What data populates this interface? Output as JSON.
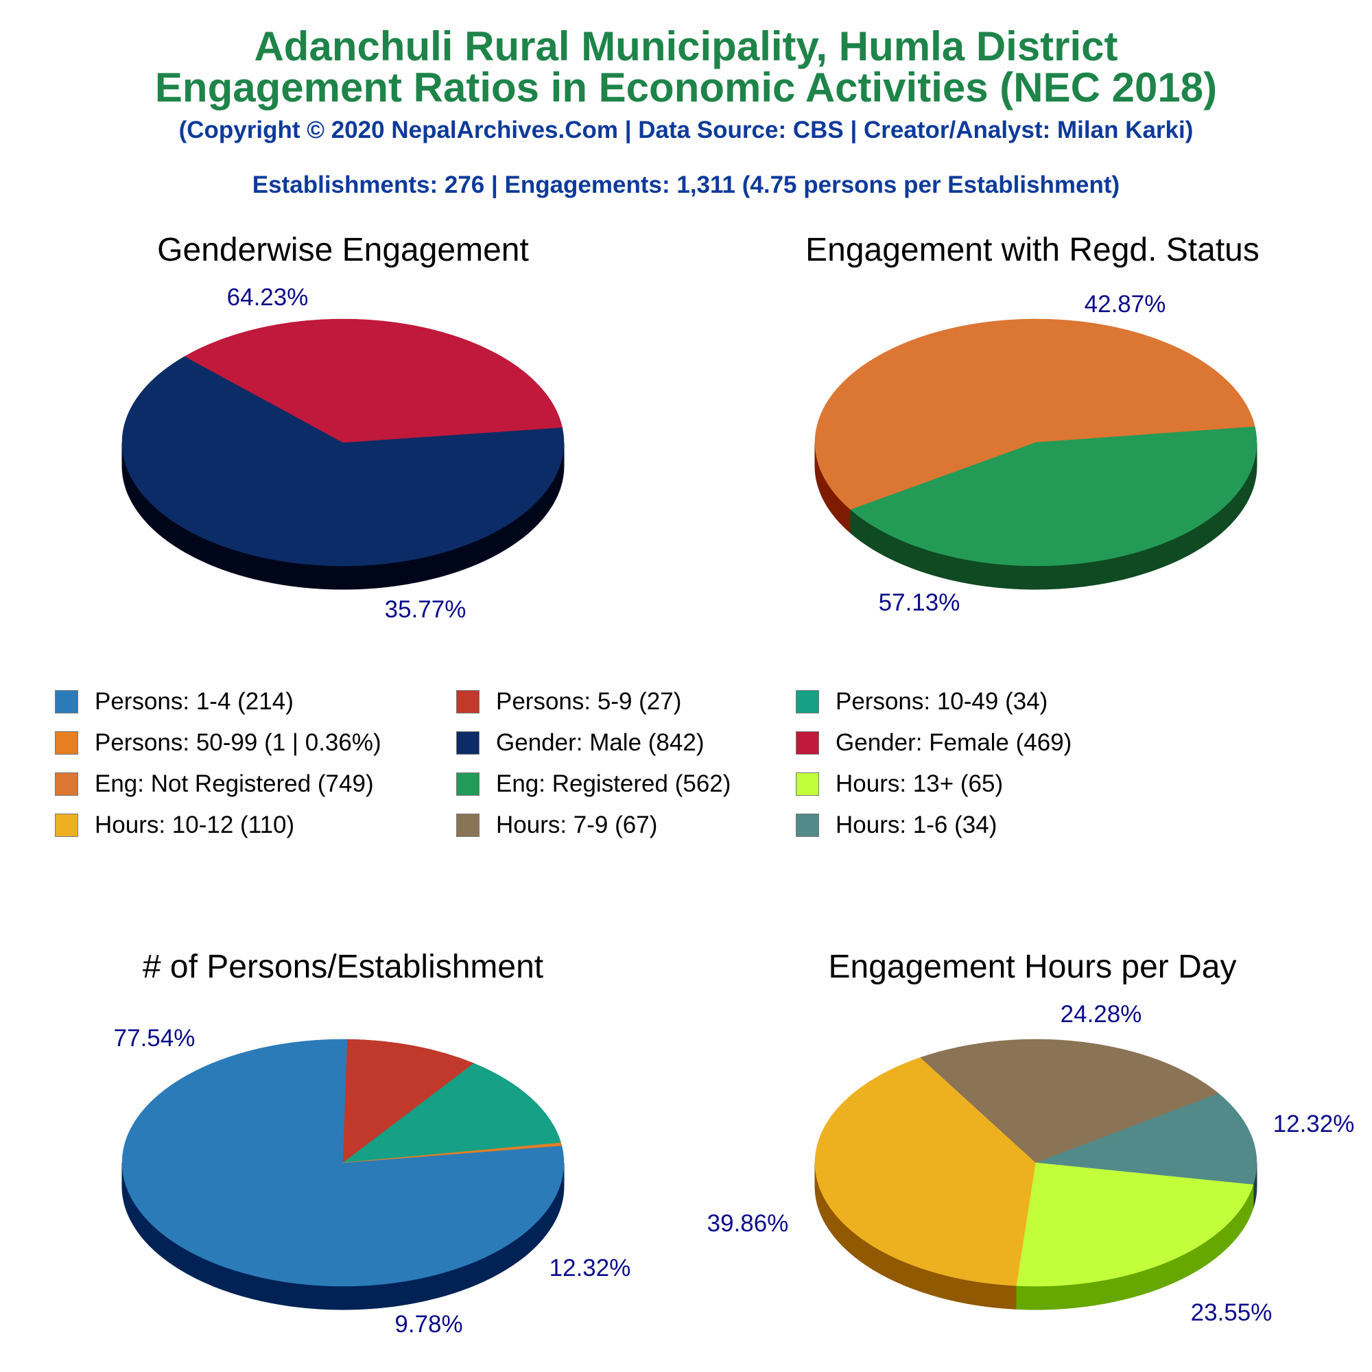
{
  "header": {
    "title_line1": "Adanchuli Rural Municipality, Humla District",
    "title_line2": "Engagement Ratios in Economic Activities (NEC 2018)",
    "copyright": "(Copyright © 2020 NepalArchives.Com | Data Source: CBS | Creator/Analyst: Milan Karki)",
    "summary": "Establishments: 276 | Engagements: 1,311 (4.75 persons per Establishment)"
  },
  "legend": [
    {
      "label": "Persons: 1-4 (214)",
      "color": "#2b7bb9"
    },
    {
      "label": "Persons: 5-9 (27)",
      "color": "#c0392b"
    },
    {
      "label": "Persons: 10-49 (34)",
      "color": "#16a085"
    },
    {
      "label": "Persons: 50-99 (1 | 0.36%)",
      "color": "#e67e22"
    },
    {
      "label": "Gender: Male (842)",
      "color": "#0b2c66"
    },
    {
      "label": "Gender: Female (469)",
      "color": "#c0193b"
    },
    {
      "label": "Eng: Not Registered (749)",
      "color": "#dc7633"
    },
    {
      "label": "Eng: Registered (562)",
      "color": "#239b56"
    },
    {
      "label": "Hours: 13+ (65)",
      "color": "#c2ff3a"
    },
    {
      "label": "Hours: 10-12 (110)",
      "color": "#edb120"
    },
    {
      "label": "Hours: 7-9 (67)",
      "color": "#8b7355"
    },
    {
      "label": "Hours: 1-6 (34)",
      "color": "#528a8a"
    }
  ],
  "chart_data": [
    {
      "type": "pie",
      "title": "Genderwise Engagement",
      "slices": [
        {
          "name": "Gender: Male",
          "value": 842,
          "percent_label": "64.23%",
          "color": "#0b2c66",
          "side": "#00061a"
        },
        {
          "name": "Gender: Female",
          "value": 469,
          "percent_label": "35.77%",
          "color": "#c0193b",
          "side": "#6b0000"
        }
      ]
    },
    {
      "type": "pie",
      "title": "Engagement with Regd. Status",
      "slices": [
        {
          "name": "Eng: Not Registered",
          "value": 749,
          "percent_label": "57.13%",
          "color": "#dc7633",
          "side": "#7d1c00"
        },
        {
          "name": "Eng: Registered",
          "value": 562,
          "percent_label": "42.87%",
          "color": "#239b56",
          "side": "#0f4a22"
        }
      ]
    },
    {
      "type": "pie",
      "title": "# of Persons/Establishment",
      "slices": [
        {
          "name": "Persons: 1-4",
          "value": 214,
          "percent_label": "77.54%",
          "color": "#2b7bb9",
          "side": "#002254"
        },
        {
          "name": "Persons: 5-9",
          "value": 27,
          "percent_label": "9.78%",
          "color": "#c0392b",
          "side": "#650000"
        },
        {
          "name": "Persons: 10-49",
          "value": 34,
          "percent_label": "12.32%",
          "color": "#16a085",
          "side": "#00421f"
        },
        {
          "name": "Persons: 50-99",
          "value": 1,
          "percent_label": "",
          "color": "#e67e22",
          "side": "#7a3a00"
        }
      ]
    },
    {
      "type": "pie",
      "title": "Engagement Hours per Day",
      "slices": [
        {
          "name": "Hours: 10-12",
          "value": 110,
          "percent_label": "39.86%",
          "color": "#edb120",
          "side": "#915900"
        },
        {
          "name": "Hours: 7-9",
          "value": 67,
          "percent_label": "24.28%",
          "color": "#8b7355",
          "side": "#4a3a22"
        },
        {
          "name": "Hours: 1-6",
          "value": 34,
          "percent_label": "12.32%",
          "color": "#528a8a",
          "side": "#1f4040"
        },
        {
          "name": "Hours: 13+",
          "value": 65,
          "percent_label": "23.55%",
          "color": "#c2ff3a",
          "side": "#66a800"
        }
      ]
    }
  ]
}
